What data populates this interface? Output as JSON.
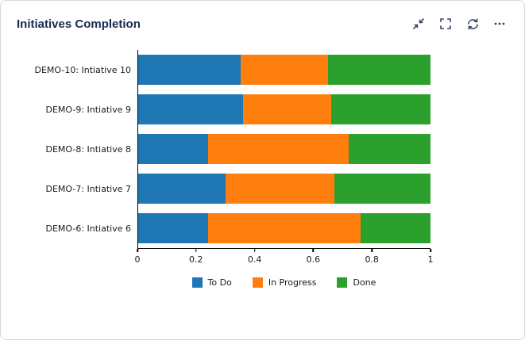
{
  "card": {
    "title": "Initiatives Completion"
  },
  "toolbar": {
    "buttons": [
      {
        "name": "collapse",
        "icon": "collapse-arrows-icon"
      },
      {
        "name": "fullscreen",
        "icon": "fullscreen-brackets-icon"
      },
      {
        "name": "refresh",
        "icon": "refresh-icon"
      },
      {
        "name": "more",
        "icon": "ellipsis-icon"
      }
    ]
  },
  "colors": {
    "title": "#172b4d",
    "icon": "#344563",
    "axis": "#000000",
    "todo": "#1f77b4",
    "in_progress": "#ff7f0e",
    "done": "#2ca02c"
  },
  "chart_data": {
    "type": "bar",
    "orientation": "horizontal",
    "stacked": true,
    "normalized": true,
    "title": "",
    "xlabel": "",
    "ylabel": "",
    "xlim": [
      0,
      1
    ],
    "xticks": [
      "0",
      "0.2",
      "0.4",
      "0.6",
      "0.8",
      "1"
    ],
    "grid": false,
    "legend_position": "bottom",
    "categories": [
      "DEMO-10: Intiative 10",
      "DEMO-9: Intiative 9",
      "DEMO-8: Intiative 8",
      "DEMO-7: Intiative 7",
      "DEMO-6: Intiative 6"
    ],
    "series": [
      {
        "name": "To Do",
        "color": "#1f77b4",
        "values": [
          0.35,
          0.36,
          0.24,
          0.3,
          0.24
        ]
      },
      {
        "name": "In Progress",
        "color": "#ff7f0e",
        "values": [
          0.3,
          0.3,
          0.48,
          0.37,
          0.52
        ]
      },
      {
        "name": "Done",
        "color": "#2ca02c",
        "values": [
          0.35,
          0.34,
          0.28,
          0.33,
          0.24
        ]
      }
    ]
  }
}
